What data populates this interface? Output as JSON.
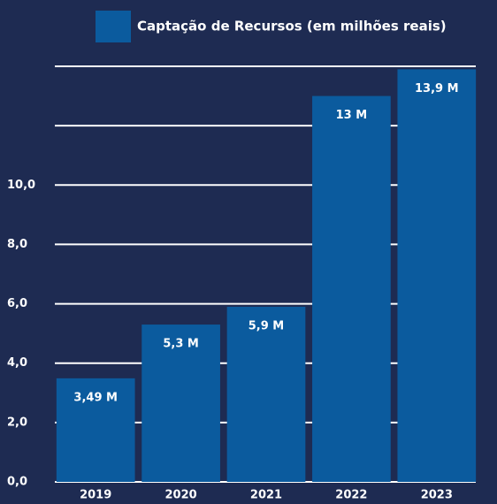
{
  "chart_data": {
    "type": "bar",
    "legend": "Captação de Recursos (em milhões reais)",
    "categories": [
      "2019",
      "2020",
      "2021",
      "2022",
      "2023"
    ],
    "values": [
      3.49,
      5.3,
      5.9,
      13,
      13.9
    ],
    "value_labels": [
      "3,49 M",
      "5,3 M",
      "5,9 M",
      "13 M",
      "13,9 M"
    ],
    "color": "#0b5b9e",
    "ylim": [
      0,
      14
    ],
    "yticks": [
      {
        "value": 0,
        "label": "0,0"
      },
      {
        "value": 2,
        "label": "2,0"
      },
      {
        "value": 4,
        "label": "4,0"
      },
      {
        "value": 6,
        "label": "6,0"
      },
      {
        "value": 8,
        "label": "8,0"
      },
      {
        "value": 10,
        "label": "10,0"
      },
      {
        "value": 12,
        "label": null
      },
      {
        "value": 14,
        "label": null
      }
    ],
    "grid": true
  }
}
